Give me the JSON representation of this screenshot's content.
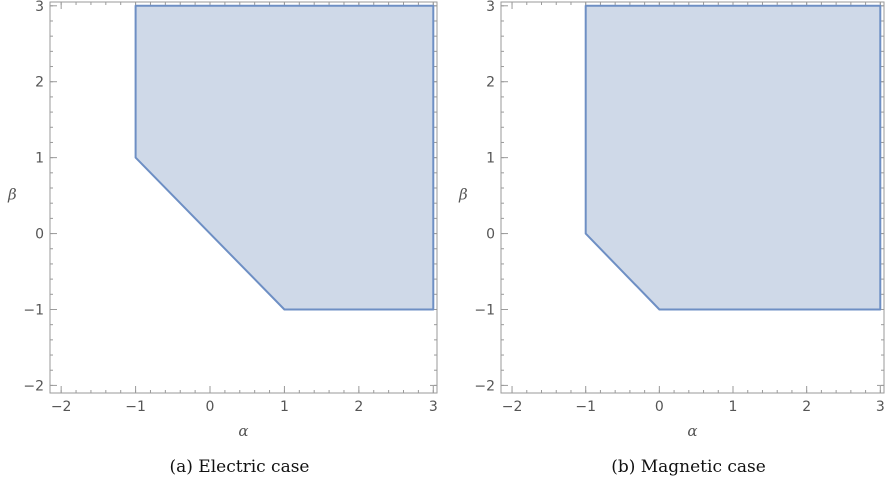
{
  "chart_data": [
    {
      "type": "area",
      "caption": "(a) Electric case",
      "xlabel": "α",
      "ylabel": "β",
      "xlim": [
        -2.15,
        3.05
      ],
      "ylim": [
        -2.1,
        3.05
      ],
      "xticks": [
        -2,
        -1,
        0,
        1,
        2,
        3
      ],
      "yticks": [
        -2,
        -1,
        0,
        1,
        2,
        3
      ],
      "xtick_labels": [
        "−2",
        "−1",
        "0",
        "1",
        "2",
        "3"
      ],
      "ytick_labels": [
        "−2",
        "−1",
        "0",
        "1",
        "2",
        "3"
      ],
      "region": [
        [
          -1,
          1
        ],
        [
          -1,
          3
        ],
        [
          3,
          3
        ],
        [
          3,
          -1
        ],
        [
          1,
          -1
        ]
      ],
      "fill_color": "#cfd9e8",
      "edge_color": "#6e8fc4",
      "grid": false
    },
    {
      "type": "area",
      "caption": "(b) Magnetic case",
      "xlabel": "α",
      "ylabel": "β",
      "xlim": [
        -2.15,
        3.05
      ],
      "ylim": [
        -2.1,
        3.05
      ],
      "xticks": [
        -2,
        -1,
        0,
        1,
        2,
        3
      ],
      "yticks": [
        -2,
        -1,
        0,
        1,
        2,
        3
      ],
      "xtick_labels": [
        "−2",
        "−1",
        "0",
        "1",
        "2",
        "3"
      ],
      "ytick_labels": [
        "−2",
        "−1",
        "0",
        "1",
        "2",
        "3"
      ],
      "region": [
        [
          -1,
          0
        ],
        [
          -1,
          3
        ],
        [
          3,
          3
        ],
        [
          3,
          -1
        ],
        [
          0,
          -1
        ]
      ],
      "fill_color": "#cfd9e8",
      "edge_color": "#6e8fc4",
      "grid": false
    }
  ]
}
